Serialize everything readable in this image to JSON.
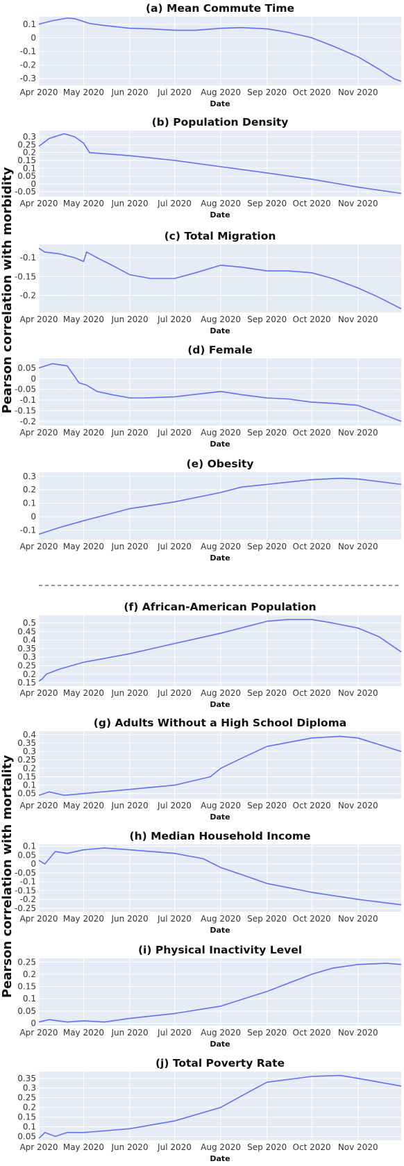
{
  "figure": {
    "group_labels": [
      "Pearson correlation with morbidity",
      "Pearson correlation with mortality"
    ],
    "colors": {
      "line": "#636efa",
      "plot_bg": "#e5ecf6",
      "grid": "#ffffff",
      "divider": "#555555"
    }
  },
  "chart_data": [
    {
      "type": "line",
      "title": "(a) Mean Commute Time",
      "xlabel": "Date",
      "ylabel": "Pearson correlation with morbidity",
      "x_ticks": [
        "Apr 2020",
        "May 2020",
        "Jun 2020",
        "Jul 2020",
        "Aug 2020",
        "Sep 2020",
        "Oct 2020",
        "Nov 2020"
      ],
      "y_ticks": [
        "0.1",
        "0",
        "-0.1",
        "-0.2",
        "-0.3"
      ],
      "y_tick_values": [
        0.1,
        0,
        -0.1,
        -0.2,
        -0.3
      ],
      "ylim": [
        -0.35,
        0.155
      ],
      "x_range": [
        "2020-04-01",
        "2020-11-30"
      ],
      "grid": true,
      "series": [
        {
          "x": [
            "2020-04-01",
            "2020-04-10",
            "2020-04-20",
            "2020-04-25",
            "2020-05-05",
            "2020-05-15",
            "2020-06-01",
            "2020-06-15",
            "2020-07-01",
            "2020-07-15",
            "2020-08-01",
            "2020-08-15",
            "2020-09-01",
            "2020-09-15",
            "2020-10-01",
            "2020-10-15",
            "2020-11-01",
            "2020-11-15",
            "2020-11-25",
            "2020-11-30"
          ],
          "y": [
            0.1,
            0.125,
            0.145,
            0.14,
            0.105,
            0.09,
            0.07,
            0.065,
            0.055,
            0.055,
            0.07,
            0.075,
            0.065,
            0.04,
            0.0,
            -0.06,
            -0.14,
            -0.23,
            -0.3,
            -0.32
          ]
        }
      ]
    },
    {
      "type": "line",
      "title": "(b) Population Density",
      "xlabel": "Date",
      "ylabel": "Pearson correlation with morbidity",
      "x_ticks": [
        "Apr 2020",
        "May 2020",
        "Jun 2020",
        "Jul 2020",
        "Aug 2020",
        "Sep 2020",
        "Oct 2020",
        "Nov 2020"
      ],
      "y_ticks": [
        "0.3",
        "0.25",
        "0.2",
        "0.15",
        "0.1",
        "0.05",
        "0",
        "-0.05"
      ],
      "y_tick_values": [
        0.3,
        0.25,
        0.2,
        0.15,
        0.1,
        0.05,
        0,
        -0.05
      ],
      "ylim": [
        -0.08,
        0.34
      ],
      "x_range": [
        "2020-04-01",
        "2020-11-30"
      ],
      "grid": true,
      "series": [
        {
          "x": [
            "2020-04-01",
            "2020-04-08",
            "2020-04-18",
            "2020-04-25",
            "2020-05-01",
            "2020-05-05",
            "2020-06-01",
            "2020-07-01",
            "2020-08-01",
            "2020-09-01",
            "2020-10-01",
            "2020-11-01",
            "2020-11-30"
          ],
          "y": [
            0.24,
            0.29,
            0.32,
            0.3,
            0.26,
            0.2,
            0.18,
            0.15,
            0.11,
            0.07,
            0.03,
            -0.02,
            -0.06
          ]
        }
      ]
    },
    {
      "type": "line",
      "title": "(c) Total Migration",
      "xlabel": "Date",
      "ylabel": "Pearson correlation with morbidity",
      "x_ticks": [
        "Apr 2020",
        "May 2020",
        "Jun 2020",
        "Jul 2020",
        "Aug 2020",
        "Sep 2020",
        "Oct 2020",
        "Nov 2020"
      ],
      "y_ticks": [
        "-0.1",
        "-0.15",
        "-0.2"
      ],
      "y_tick_values": [
        -0.1,
        -0.15,
        -0.2
      ],
      "ylim": [
        -0.245,
        -0.065
      ],
      "x_range": [
        "2020-04-01",
        "2020-11-30"
      ],
      "grid": true,
      "series": [
        {
          "x": [
            "2020-04-01",
            "2020-04-05",
            "2020-04-15",
            "2020-04-25",
            "2020-05-01",
            "2020-05-03",
            "2020-05-10",
            "2020-05-20",
            "2020-06-01",
            "2020-06-15",
            "2020-07-01",
            "2020-07-15",
            "2020-08-01",
            "2020-08-15",
            "2020-09-01",
            "2020-09-15",
            "2020-10-01",
            "2020-10-15",
            "2020-11-01",
            "2020-11-15",
            "2020-11-30"
          ],
          "y": [
            -0.075,
            -0.085,
            -0.09,
            -0.1,
            -0.11,
            -0.085,
            -0.1,
            -0.12,
            -0.145,
            -0.155,
            -0.155,
            -0.14,
            -0.12,
            -0.125,
            -0.135,
            -0.135,
            -0.14,
            -0.155,
            -0.18,
            -0.205,
            -0.235
          ]
        }
      ]
    },
    {
      "type": "line",
      "title": "(d) Female",
      "xlabel": "Date",
      "ylabel": "Pearson correlation with morbidity",
      "x_ticks": [
        "Apr 2020",
        "May 2020",
        "Jun 2020",
        "Jul 2020",
        "Aug 2020",
        "Sep 2020",
        "Oct 2020",
        "Nov 2020"
      ],
      "y_ticks": [
        "0.05",
        "0",
        "-0.05",
        "-0.1",
        "-0.15",
        "-0.2"
      ],
      "y_tick_values": [
        0.05,
        0,
        -0.05,
        -0.1,
        -0.15,
        -0.2
      ],
      "ylim": [
        -0.22,
        0.095
      ],
      "x_range": [
        "2020-04-01",
        "2020-11-30"
      ],
      "grid": true,
      "series": [
        {
          "x": [
            "2020-04-01",
            "2020-04-10",
            "2020-04-20",
            "2020-04-28",
            "2020-05-03",
            "2020-05-10",
            "2020-05-20",
            "2020-06-01",
            "2020-06-10",
            "2020-07-01",
            "2020-08-01",
            "2020-08-15",
            "2020-09-01",
            "2020-09-15",
            "2020-10-01",
            "2020-10-15",
            "2020-11-01",
            "2020-11-15",
            "2020-11-30"
          ],
          "y": [
            0.05,
            0.07,
            0.06,
            -0.02,
            -0.03,
            -0.06,
            -0.075,
            -0.09,
            -0.09,
            -0.085,
            -0.06,
            -0.075,
            -0.09,
            -0.095,
            -0.11,
            -0.115,
            -0.125,
            -0.16,
            -0.2
          ]
        }
      ]
    },
    {
      "type": "line",
      "title": "(e) Obesity",
      "xlabel": "Date",
      "ylabel": "Pearson correlation with morbidity",
      "x_ticks": [
        "Apr 2020",
        "May 2020",
        "Jun 2020",
        "Jul 2020",
        "Aug 2020",
        "Sep 2020",
        "Oct 2020",
        "Nov 2020"
      ],
      "y_ticks": [
        "0.3",
        "0.2",
        "0.1",
        "0",
        "-0.1"
      ],
      "y_tick_values": [
        0.3,
        0.2,
        0.1,
        0,
        -0.1
      ],
      "ylim": [
        -0.17,
        0.33
      ],
      "x_range": [
        "2020-04-01",
        "2020-11-30"
      ],
      "grid": true,
      "series": [
        {
          "x": [
            "2020-04-01",
            "2020-04-15",
            "2020-05-01",
            "2020-05-15",
            "2020-06-01",
            "2020-07-01",
            "2020-08-01",
            "2020-08-15",
            "2020-09-01",
            "2020-10-01",
            "2020-10-20",
            "2020-11-01",
            "2020-11-30"
          ],
          "y": [
            -0.13,
            -0.08,
            -0.03,
            0.01,
            0.06,
            0.11,
            0.18,
            0.22,
            0.24,
            0.275,
            0.285,
            0.28,
            0.24
          ]
        }
      ]
    },
    {
      "type": "line",
      "title": "(f) African-American Population",
      "xlabel": "Date",
      "ylabel": "Pearson correlation with mortality",
      "x_ticks": [
        "Apr 2020",
        "May 2020",
        "Jun 2020",
        "Jul 2020",
        "Aug 2020",
        "Sep 2020",
        "Oct 2020",
        "Nov 2020"
      ],
      "y_ticks": [
        "0.5",
        "0.45",
        "0.4",
        "0.35",
        "0.3",
        "0.25",
        "0.2",
        "0.15"
      ],
      "y_tick_values": [
        0.5,
        0.45,
        0.4,
        0.35,
        0.3,
        0.25,
        0.2,
        0.15
      ],
      "ylim": [
        0.13,
        0.545
      ],
      "x_range": [
        "2020-04-01",
        "2020-11-30"
      ],
      "grid": true,
      "series": [
        {
          "x": [
            "2020-04-01",
            "2020-04-03",
            "2020-04-06",
            "2020-04-15",
            "2020-05-01",
            "2020-06-01",
            "2020-07-01",
            "2020-08-01",
            "2020-09-01",
            "2020-09-15",
            "2020-10-01",
            "2020-10-15",
            "2020-11-01",
            "2020-11-15",
            "2020-11-30"
          ],
          "y": [
            0.16,
            0.17,
            0.2,
            0.23,
            0.27,
            0.32,
            0.38,
            0.44,
            0.51,
            0.52,
            0.52,
            0.5,
            0.47,
            0.42,
            0.33
          ]
        }
      ]
    },
    {
      "type": "line",
      "title": "(g) Adults Without a High School Diploma",
      "xlabel": "Date",
      "ylabel": "Pearson correlation with mortality",
      "x_ticks": [
        "Apr 2020",
        "May 2020",
        "Jun 2020",
        "Jul 2020",
        "Aug 2020",
        "Sep 2020",
        "Oct 2020",
        "Nov 2020"
      ],
      "y_ticks": [
        "0.4",
        "0.35",
        "0.3",
        "0.25",
        "0.2",
        "0.15",
        "0.1",
        "0.05"
      ],
      "y_tick_values": [
        0.4,
        0.35,
        0.3,
        0.25,
        0.2,
        0.15,
        0.1,
        0.05
      ],
      "ylim": [
        0.02,
        0.42
      ],
      "x_range": [
        "2020-04-01",
        "2020-11-30"
      ],
      "grid": true,
      "series": [
        {
          "x": [
            "2020-04-01",
            "2020-04-08",
            "2020-04-18",
            "2020-05-01",
            "2020-06-01",
            "2020-07-01",
            "2020-07-25",
            "2020-08-01",
            "2020-08-15",
            "2020-09-01",
            "2020-10-01",
            "2020-10-20",
            "2020-11-01",
            "2020-11-30"
          ],
          "y": [
            0.04,
            0.06,
            0.04,
            0.05,
            0.075,
            0.1,
            0.15,
            0.2,
            0.26,
            0.33,
            0.38,
            0.39,
            0.38,
            0.3
          ]
        }
      ]
    },
    {
      "type": "line",
      "title": "(h) Median Household Income",
      "xlabel": "Date",
      "ylabel": "Pearson correlation with mortality",
      "x_ticks": [
        "Apr 2020",
        "May 2020",
        "Jun 2020",
        "Jul 2020",
        "Aug 2020",
        "Sep 2020",
        "Oct 2020",
        "Nov 2020"
      ],
      "y_ticks": [
        "0.1",
        "0.05",
        "0",
        "-0.05",
        "-0.1",
        "-0.15",
        "-0.2",
        "-0.25"
      ],
      "y_tick_values": [
        0.1,
        0.05,
        0,
        -0.05,
        -0.1,
        -0.15,
        -0.2,
        -0.25
      ],
      "ylim": [
        -0.27,
        0.11
      ],
      "x_range": [
        "2020-04-01",
        "2020-11-30"
      ],
      "grid": true,
      "series": [
        {
          "x": [
            "2020-04-01",
            "2020-04-05",
            "2020-04-12",
            "2020-04-20",
            "2020-05-01",
            "2020-05-15",
            "2020-06-01",
            "2020-07-01",
            "2020-07-20",
            "2020-08-01",
            "2020-08-15",
            "2020-09-01",
            "2020-10-01",
            "2020-11-01",
            "2020-11-30"
          ],
          "y": [
            0.02,
            0.0,
            0.07,
            0.06,
            0.08,
            0.09,
            0.08,
            0.06,
            0.03,
            -0.02,
            -0.06,
            -0.11,
            -0.16,
            -0.2,
            -0.23
          ]
        }
      ]
    },
    {
      "type": "line",
      "title": "(i) Physical Inactivity Level",
      "xlabel": "Date",
      "ylabel": "Pearson correlation with mortality",
      "x_ticks": [
        "Apr 2020",
        "May 2020",
        "Jun 2020",
        "Jul 2020",
        "Aug 2020",
        "Sep 2020",
        "Oct 2020",
        "Nov 2020"
      ],
      "y_ticks": [
        "0.25",
        "0.2",
        "0.15",
        "0.1",
        "0.05",
        "0"
      ],
      "y_tick_values": [
        0.25,
        0.2,
        0.15,
        0.1,
        0.05,
        0
      ],
      "ylim": [
        -0.01,
        0.265
      ],
      "x_range": [
        "2020-04-01",
        "2020-11-30"
      ],
      "grid": true,
      "series": [
        {
          "x": [
            "2020-04-01",
            "2020-04-08",
            "2020-04-20",
            "2020-05-01",
            "2020-05-15",
            "2020-06-01",
            "2020-07-01",
            "2020-08-01",
            "2020-09-01",
            "2020-10-01",
            "2020-10-15",
            "2020-11-01",
            "2020-11-20",
            "2020-11-30"
          ],
          "y": [
            0.005,
            0.015,
            0.005,
            0.01,
            0.005,
            0.02,
            0.04,
            0.07,
            0.13,
            0.2,
            0.225,
            0.24,
            0.245,
            0.24
          ]
        }
      ]
    },
    {
      "type": "line",
      "title": "(j) Total Poverty Rate",
      "xlabel": "Date",
      "ylabel": "Pearson correlation with mortality",
      "x_ticks": [
        "Apr 2020",
        "May 2020",
        "Jun 2020",
        "Jul 2020",
        "Aug 2020",
        "Sep 2020",
        "Oct 2020",
        "Nov 2020"
      ],
      "y_ticks": [
        "0.35",
        "0.3",
        "0.25",
        "0.2",
        "0.15",
        "0.1",
        "0.05"
      ],
      "y_tick_values": [
        0.35,
        0.3,
        0.25,
        0.2,
        0.15,
        0.1,
        0.05
      ],
      "ylim": [
        0.03,
        0.385
      ],
      "x_range": [
        "2020-04-01",
        "2020-11-30"
      ],
      "grid": true,
      "series": [
        {
          "x": [
            "2020-04-01",
            "2020-04-05",
            "2020-04-12",
            "2020-04-20",
            "2020-05-01",
            "2020-06-01",
            "2020-07-01",
            "2020-08-01",
            "2020-08-15",
            "2020-09-01",
            "2020-10-01",
            "2020-10-20",
            "2020-11-01",
            "2020-11-30"
          ],
          "y": [
            0.04,
            0.07,
            0.05,
            0.07,
            0.07,
            0.09,
            0.13,
            0.2,
            0.26,
            0.33,
            0.36,
            0.365,
            0.35,
            0.31
          ]
        }
      ]
    }
  ]
}
